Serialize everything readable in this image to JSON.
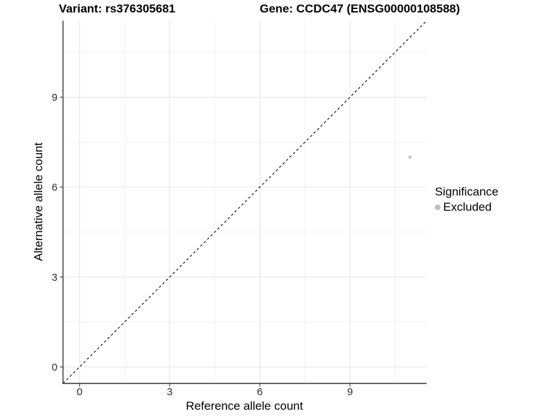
{
  "titles": {
    "variant": "Variant: rs376305681",
    "gene": "Gene: CCDC47 (ENSG00000108588)"
  },
  "legend": {
    "title": "Significance",
    "items": [
      {
        "label": "Excluded",
        "color": "#bdbdbd"
      }
    ],
    "position": "right"
  },
  "chart_data": {
    "type": "scatter",
    "title": "Variant: rs376305681 | Gene: CCDC47 (ENSG00000108588)",
    "xlabel": "Reference allele count",
    "ylabel": "Alternative allele count",
    "xlim": [
      -0.55,
      11.55
    ],
    "ylim": [
      -0.55,
      11.55
    ],
    "x_ticks": [
      0,
      3,
      6,
      9
    ],
    "y_ticks": [
      0,
      3,
      6,
      9
    ],
    "minor_gridlines": [
      1.5,
      4.5,
      7.5,
      10.5
    ],
    "grid": "major and minor, light gray on white panel",
    "legend_position": "right",
    "series": [
      {
        "name": "Excluded",
        "color": "#bdbdbd",
        "point_radius": 2.2,
        "points": [
          {
            "x": 11,
            "y": 7
          }
        ]
      }
    ],
    "reference_line": {
      "kind": "identity y=x",
      "style": "dashed",
      "color": "#000000"
    }
  },
  "colors": {
    "grid_major": "#e4e4e4",
    "grid_minor": "#f1f1f1",
    "axis": "#333333",
    "tick_text": "#2b2b2b",
    "background": "#ffffff"
  }
}
